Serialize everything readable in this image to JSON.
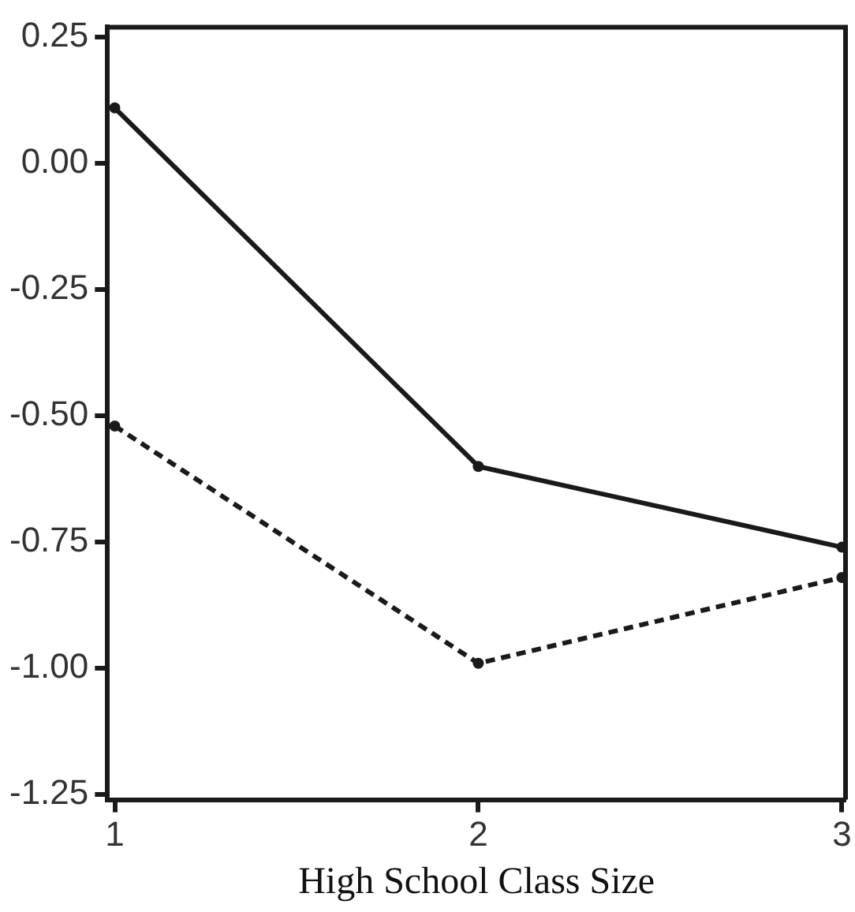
{
  "chart_data": {
    "type": "line",
    "xlabel": "High School Class Size",
    "x": [
      1,
      2,
      3
    ],
    "series": [
      {
        "color": "#1a1a1a",
        "line_style": "solid",
        "values": [
          0.11,
          -0.6,
          -0.76
        ]
      },
      {
        "color": "#1a1a1a",
        "line_style": "dashed",
        "values": [
          -0.52,
          -0.99,
          -0.82
        ]
      }
    ],
    "xlim": [
      0.98,
      3.01
    ],
    "xticks": [
      1,
      2,
      3
    ],
    "ylim": [
      -1.26,
      0.27
    ],
    "yticks": [
      -1.25,
      {
        "value": -1,
        "label": "-1.00"
      },
      -0.75,
      {
        "value": -0.5,
        "label": "-0.50"
      },
      -0.25,
      {
        "value": 0,
        "label": "0.00"
      },
      0.25
    ],
    "grid": false,
    "legend": false,
    "marker": "circle"
  }
}
